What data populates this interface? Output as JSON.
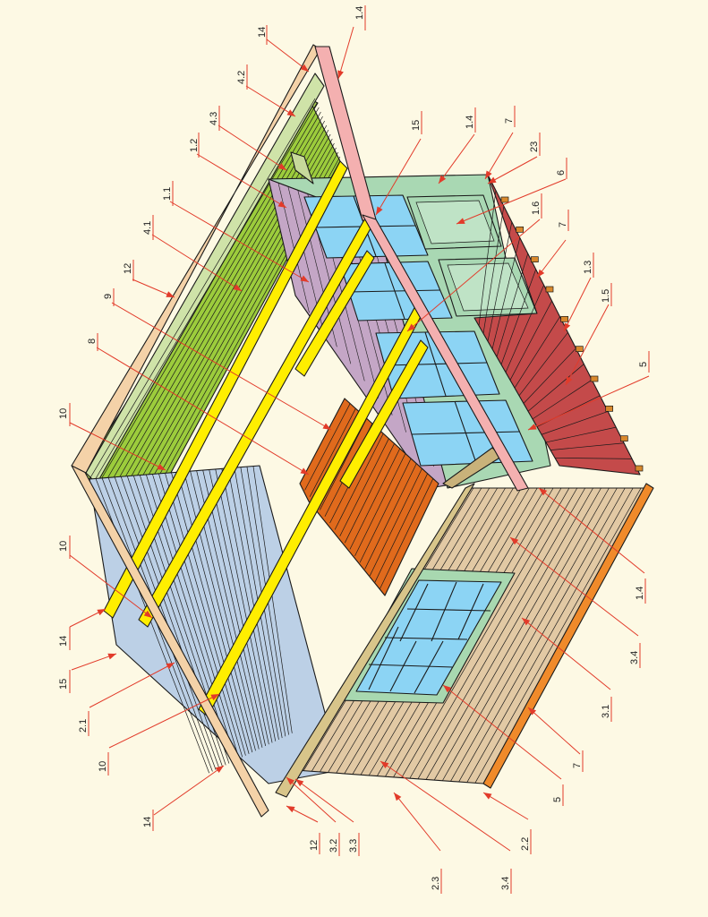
{
  "labels": {
    "l_1_4_top": "1.4",
    "l_14_top": "14",
    "l_4_2": "4.2",
    "l_4_3": "4.3",
    "l_1_2": "1.2",
    "l_1_1": "1.1",
    "l_4_1": "4.1",
    "l_12_left": "12",
    "l_9": "9",
    "l_8": "8",
    "l_10_a": "10",
    "l_10_b": "10",
    "l_14_left": "14",
    "l_15_left": "15",
    "l_2_1": "2.1",
    "l_10_c": "10",
    "l_14_bottom": "14",
    "l_12_bottom": "12",
    "l_3_2": "3.2",
    "l_3_3": "3.3",
    "l_2_3": "2.3",
    "l_3_4_bottom": "3.4",
    "l_2_2": "2.2",
    "l_5_bottom": "5",
    "l_7_bottom": "7",
    "l_3_1": "3.1",
    "l_3_4_right": "3.4",
    "l_1_4_right": "1.4",
    "l_5_right": "5",
    "l_1_5_right": "1.5",
    "l_1_3": "1.3",
    "l_7_mid": "7",
    "l_1_6": "1.6",
    "l_6": "6",
    "l_23": "23",
    "l_7_top": "7",
    "l_1_4_mid": "1.4",
    "l_15_top": "15"
  },
  "colors": {
    "background": "#fdf9e4",
    "leader": "#e23b2a",
    "roof_green": "#9ccc3c",
    "roof_green_light": "#b8d889",
    "roof_blue": "#bcd0e6",
    "rafter_yellow": "#ffee00",
    "wall_orange": "#e06a1c",
    "wall_beige": "#e2c9a4",
    "wall_red": "#c44a4a",
    "wall_lilac": "#c4a6c6",
    "frame_pink": "#f4b0b0",
    "window_glass": "#8cd4f4",
    "window_frame": "#a8d8b0",
    "door_green": "#a9d8b3",
    "post_wood": "#e7c48c"
  }
}
